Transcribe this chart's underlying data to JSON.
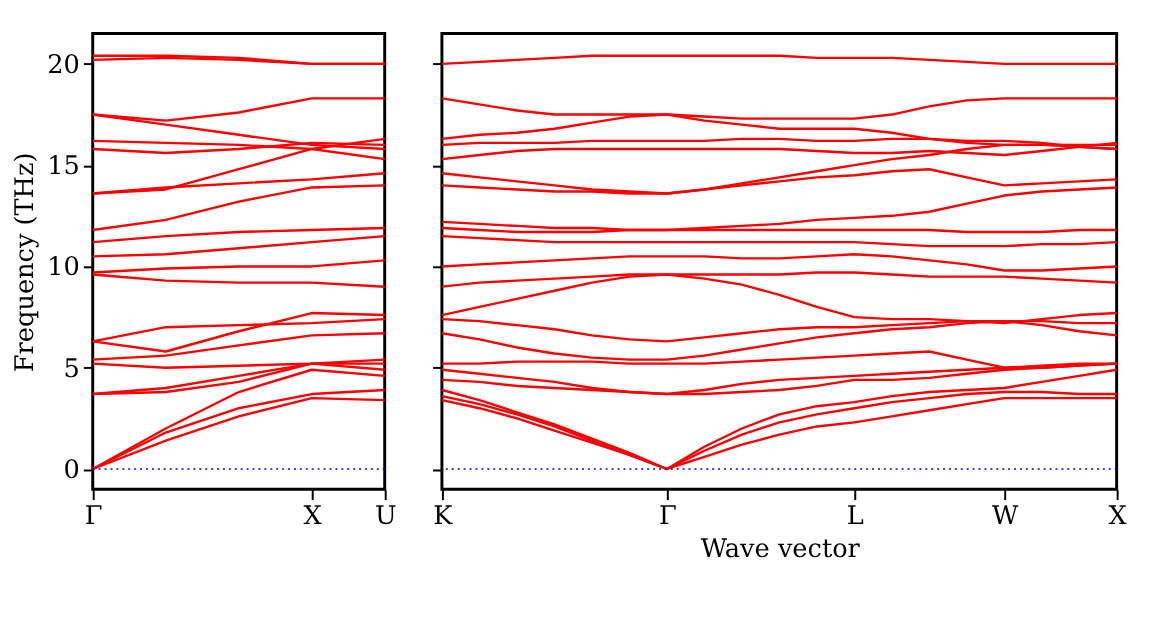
{
  "chart_data": [
    {
      "type": "line",
      "ylabel": "Frequency (THz)",
      "categories": [
        "Γ",
        null,
        null,
        "X",
        "U"
      ],
      "ylim": [
        -1,
        21.5
      ],
      "yticks": [
        0,
        5,
        10,
        15,
        20
      ],
      "grid": false,
      "legend": false,
      "line_style": "solid",
      "marker": "none",
      "ref_lines": [
        {
          "axis": "y",
          "value": 0,
          "color": "#0000ff",
          "line_style": "dotted"
        }
      ],
      "series": [
        {
          "color": "#ff0000",
          "values": [
            0,
            1.4,
            2.6,
            3.5,
            3.4
          ]
        },
        {
          "color": "#ff0000",
          "values": [
            0,
            1.8,
            3.0,
            3.7,
            3.9
          ]
        },
        {
          "color": "#ff0000",
          "values": [
            0,
            2.0,
            3.8,
            4.9,
            4.6
          ]
        },
        {
          "color": "#ff0000",
          "values": [
            3.7,
            3.8,
            4.3,
            5.2,
            4.9
          ]
        },
        {
          "color": "#ff0000",
          "values": [
            3.7,
            4.0,
            4.6,
            5.2,
            5.2
          ]
        },
        {
          "color": "#ff0000",
          "values": [
            5.2,
            5.0,
            5.1,
            5.2,
            5.4
          ]
        },
        {
          "color": "#ff0000",
          "values": [
            5.4,
            5.6,
            6.1,
            6.6,
            6.7
          ]
        },
        {
          "color": "#ff0000",
          "values": [
            6.3,
            7.0,
            7.1,
            7.2,
            7.4
          ]
        },
        {
          "color": "#ff0000",
          "values": [
            6.3,
            5.8,
            6.8,
            7.7,
            7.6
          ]
        },
        {
          "color": "#ff0000",
          "values": [
            9.6,
            9.3,
            9.2,
            9.2,
            9.0
          ]
        },
        {
          "color": "#ff0000",
          "values": [
            9.7,
            9.9,
            10.0,
            10.0,
            10.3
          ]
        },
        {
          "color": "#ff0000",
          "values": [
            10.5,
            10.6,
            10.9,
            11.2,
            11.5
          ]
        },
        {
          "color": "#ff0000",
          "values": [
            11.2,
            11.5,
            11.7,
            11.8,
            11.9
          ]
        },
        {
          "color": "#ff0000",
          "values": [
            11.8,
            12.3,
            13.2,
            13.9,
            14.0
          ]
        },
        {
          "color": "#ff0000",
          "values": [
            13.6,
            13.9,
            14.1,
            14.3,
            14.6
          ]
        },
        {
          "color": "#ff0000",
          "values": [
            13.6,
            13.8,
            14.8,
            15.8,
            15.3
          ]
        },
        {
          "color": "#ff0000",
          "values": [
            15.8,
            15.6,
            15.8,
            16.1,
            16.0
          ]
        },
        {
          "color": "#ff0000",
          "values": [
            16.2,
            16.1,
            16.0,
            15.8,
            16.3
          ]
        },
        {
          "color": "#ff0000",
          "values": [
            17.5,
            17.2,
            17.6,
            18.3,
            18.3
          ]
        },
        {
          "color": "#ff0000",
          "values": [
            17.5,
            17.0,
            16.5,
            16.0,
            15.8
          ]
        },
        {
          "color": "#ff0000",
          "values": [
            20.2,
            20.3,
            20.2,
            20.0,
            20.0
          ]
        },
        {
          "color": "#ff0000",
          "values": [
            20.4,
            20.4,
            20.3,
            20.0,
            20.0
          ]
        }
      ]
    },
    {
      "type": "line",
      "xlabel": "Wave vector",
      "categories": [
        "K",
        null,
        null,
        null,
        null,
        null,
        "Γ",
        null,
        null,
        null,
        null,
        "L",
        null,
        null,
        null,
        "W",
        null,
        null,
        "X"
      ],
      "ylim": [
        -1,
        21.5
      ],
      "yticks": [
        {
          "value": 0,
          "label": null
        },
        {
          "value": 5,
          "label": null
        },
        {
          "value": 10,
          "label": null
        },
        {
          "value": 15,
          "label": null
        },
        {
          "value": 20,
          "label": null
        }
      ],
      "tick_labels": "x",
      "grid": false,
      "legend": false,
      "line_style": "solid",
      "marker": "none",
      "ref_lines": [
        {
          "axis": "y",
          "value": 0,
          "color": "#0000ff",
          "line_style": "dotted"
        }
      ],
      "series": [
        {
          "color": "#ff0000",
          "values": [
            3.4,
            3.0,
            2.5,
            1.9,
            1.3,
            0.7,
            0,
            0.6,
            1.2,
            1.7,
            2.1,
            2.3,
            2.6,
            2.9,
            3.2,
            3.5,
            3.5,
            3.5,
            3.5
          ]
        },
        {
          "color": "#ff0000",
          "values": [
            3.6,
            3.2,
            2.7,
            2.1,
            1.4,
            0.7,
            0,
            0.9,
            1.7,
            2.3,
            2.7,
            3.0,
            3.3,
            3.5,
            3.7,
            3.8,
            3.8,
            3.7,
            3.7
          ]
        },
        {
          "color": "#ff0000",
          "values": [
            3.9,
            3.4,
            2.8,
            2.2,
            1.5,
            0.8,
            0,
            1.1,
            2.0,
            2.7,
            3.1,
            3.3,
            3.6,
            3.8,
            3.9,
            4.0,
            4.3,
            4.6,
            4.9
          ]
        },
        {
          "color": "#ff0000",
          "values": [
            4.4,
            4.3,
            4.1,
            4.0,
            3.9,
            3.8,
            3.7,
            3.7,
            3.8,
            3.9,
            4.1,
            4.4,
            4.4,
            4.5,
            4.7,
            4.9,
            5.0,
            5.1,
            5.2
          ]
        },
        {
          "color": "#ff0000",
          "values": [
            4.9,
            4.7,
            4.5,
            4.3,
            4.0,
            3.8,
            3.7,
            3.9,
            4.2,
            4.4,
            4.5,
            4.6,
            4.7,
            4.8,
            4.9,
            5.0,
            5.1,
            5.2,
            5.2
          ]
        },
        {
          "color": "#ff0000",
          "values": [
            5.2,
            5.2,
            5.3,
            5.3,
            5.3,
            5.2,
            5.2,
            5.2,
            5.3,
            5.4,
            5.5,
            5.6,
            5.7,
            5.8,
            5.4,
            5.0,
            5.0,
            5.1,
            5.2
          ]
        },
        {
          "color": "#ff0000",
          "values": [
            6.7,
            6.4,
            6.0,
            5.7,
            5.5,
            5.4,
            5.4,
            5.6,
            5.9,
            6.2,
            6.5,
            6.7,
            6.9,
            7.0,
            7.2,
            7.3,
            7.1,
            6.8,
            6.6
          ]
        },
        {
          "color": "#ff0000",
          "values": [
            7.4,
            7.3,
            7.1,
            6.9,
            6.6,
            6.4,
            6.3,
            6.5,
            6.7,
            6.9,
            7.0,
            7.0,
            7.1,
            7.2,
            7.3,
            7.2,
            7.4,
            7.6,
            7.7
          ]
        },
        {
          "color": "#ff0000",
          "values": [
            7.6,
            8.0,
            8.4,
            8.8,
            9.2,
            9.5,
            9.6,
            9.4,
            9.1,
            8.6,
            8.0,
            7.5,
            7.4,
            7.4,
            7.3,
            7.3,
            7.3,
            7.2,
            7.2
          ]
        },
        {
          "color": "#ff0000",
          "values": [
            9.0,
            9.2,
            9.3,
            9.4,
            9.5,
            9.6,
            9.6,
            9.6,
            9.6,
            9.6,
            9.7,
            9.7,
            9.6,
            9.5,
            9.5,
            9.5,
            9.4,
            9.3,
            9.2
          ]
        },
        {
          "color": "#ff0000",
          "values": [
            10.0,
            10.1,
            10.2,
            10.3,
            10.4,
            10.5,
            10.5,
            10.5,
            10.4,
            10.4,
            10.5,
            10.6,
            10.5,
            10.3,
            10.1,
            9.8,
            9.8,
            9.9,
            10.0
          ]
        },
        {
          "color": "#ff0000",
          "values": [
            11.5,
            11.4,
            11.3,
            11.2,
            11.2,
            11.2,
            11.2,
            11.2,
            11.2,
            11.2,
            11.2,
            11.2,
            11.1,
            11.0,
            11.0,
            11.0,
            11.1,
            11.1,
            11.2
          ]
        },
        {
          "color": "#ff0000",
          "values": [
            11.9,
            11.8,
            11.7,
            11.7,
            11.7,
            11.8,
            11.8,
            11.8,
            11.8,
            11.8,
            11.8,
            11.8,
            11.8,
            11.8,
            11.7,
            11.7,
            11.7,
            11.8,
            11.8
          ]
        },
        {
          "color": "#ff0000",
          "values": [
            12.2,
            12.1,
            12.0,
            11.9,
            11.9,
            11.8,
            11.8,
            11.9,
            12.0,
            12.1,
            12.3,
            12.4,
            12.5,
            12.7,
            13.1,
            13.5,
            13.7,
            13.8,
            13.9
          ]
        },
        {
          "color": "#ff0000",
          "values": [
            14.0,
            13.9,
            13.8,
            13.7,
            13.7,
            13.6,
            13.6,
            13.8,
            14.0,
            14.2,
            14.4,
            14.5,
            14.7,
            14.8,
            14.4,
            14.0,
            14.1,
            14.2,
            14.3
          ]
        },
        {
          "color": "#ff0000",
          "values": [
            14.6,
            14.4,
            14.2,
            14.0,
            13.8,
            13.7,
            13.6,
            13.8,
            14.1,
            14.4,
            14.7,
            15.0,
            15.3,
            15.5,
            15.8,
            16.0,
            16.0,
            15.9,
            15.8
          ]
        },
        {
          "color": "#ff0000",
          "values": [
            15.3,
            15.5,
            15.7,
            15.8,
            15.8,
            15.8,
            15.8,
            15.8,
            15.8,
            15.8,
            15.7,
            15.6,
            15.6,
            15.7,
            15.6,
            15.5,
            15.7,
            15.9,
            16.1
          ]
        },
        {
          "color": "#ff0000",
          "values": [
            16.0,
            16.1,
            16.1,
            16.1,
            16.2,
            16.2,
            16.2,
            16.2,
            16.3,
            16.3,
            16.2,
            16.2,
            16.3,
            16.3,
            16.2,
            16.2,
            16.1,
            15.9,
            15.8
          ]
        },
        {
          "color": "#ff0000",
          "values": [
            16.3,
            16.5,
            16.6,
            16.8,
            17.1,
            17.4,
            17.5,
            17.2,
            17.0,
            16.8,
            16.8,
            16.8,
            16.6,
            16.3,
            16.1,
            16.0,
            16.0,
            16.0,
            16.0
          ]
        },
        {
          "color": "#ff0000",
          "values": [
            18.3,
            18.0,
            17.7,
            17.5,
            17.5,
            17.5,
            17.5,
            17.4,
            17.3,
            17.3,
            17.3,
            17.3,
            17.5,
            17.9,
            18.2,
            18.3,
            18.3,
            18.3,
            18.3
          ]
        },
        {
          "color": "#ff0000",
          "values": [
            20.0,
            20.1,
            20.2,
            20.3,
            20.4,
            20.4,
            20.4,
            20.4,
            20.4,
            20.4,
            20.3,
            20.3,
            20.3,
            20.2,
            20.1,
            20.0,
            20.0,
            20.0,
            20.0
          ]
        }
      ]
    }
  ]
}
